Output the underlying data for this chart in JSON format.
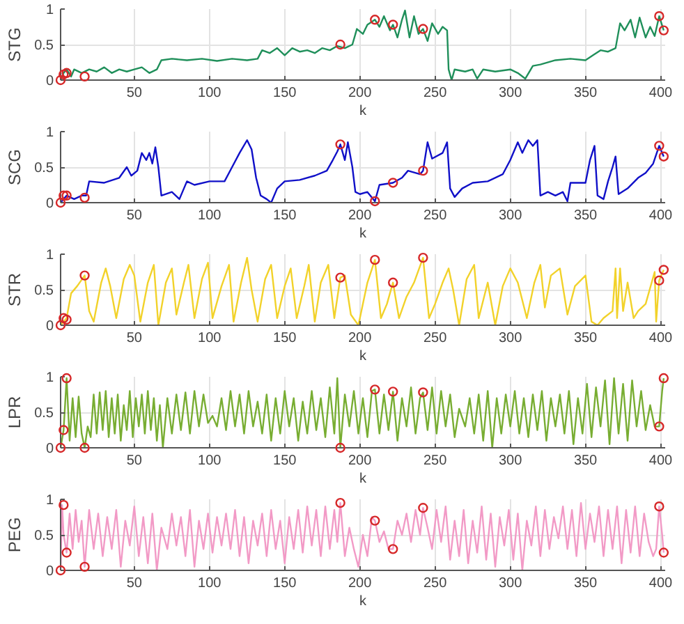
{
  "chart_data": [
    {
      "type": "line",
      "xlabel": "k",
      "ylabel": "STG",
      "xlim": [
        1,
        403
      ],
      "xticks": [
        50,
        100,
        150,
        200,
        250,
        300,
        350,
        400
      ],
      "ylim": [
        0,
        1
      ],
      "yticks": [
        0,
        0.5,
        1
      ],
      "grid": true,
      "series": [
        {
          "color": "#1f8f5a",
          "x": [
            1,
            3,
            5,
            8,
            10,
            15,
            20,
            25,
            30,
            35,
            40,
            45,
            50,
            55,
            60,
            65,
            68,
            75,
            85,
            95,
            105,
            115,
            125,
            132,
            135,
            140,
            145,
            150,
            155,
            160,
            165,
            170,
            175,
            180,
            185,
            190,
            195,
            198,
            202,
            205,
            210,
            213,
            216,
            220,
            222,
            225,
            228,
            230,
            233,
            236,
            239,
            242,
            245,
            248,
            252,
            255,
            258,
            259,
            261,
            263,
            270,
            275,
            278,
            282,
            290,
            300,
            305,
            310,
            315,
            320,
            330,
            340,
            350,
            355,
            360,
            365,
            370,
            373,
            376,
            380,
            383,
            386,
            390,
            393,
            396,
            399,
            402
          ],
          "values": [
            0,
            0.1,
            0.15,
            0.05,
            0.15,
            0.1,
            0.15,
            0.12,
            0.18,
            0.1,
            0.15,
            0.12,
            0.15,
            0.18,
            0.1,
            0.15,
            0.28,
            0.3,
            0.28,
            0.3,
            0.27,
            0.3,
            0.28,
            0.3,
            0.42,
            0.38,
            0.45,
            0.35,
            0.45,
            0.4,
            0.42,
            0.38,
            0.45,
            0.42,
            0.48,
            0.45,
            0.5,
            0.72,
            0.65,
            0.78,
            0.85,
            0.75,
            0.9,
            0.7,
            0.78,
            0.6,
            0.85,
            0.98,
            0.6,
            0.9,
            0.65,
            0.72,
            0.55,
            0.8,
            0.65,
            0.75,
            0.7,
            0.15,
            0,
            0.15,
            0.12,
            0.15,
            0.02,
            0.15,
            0.12,
            0.15,
            0.1,
            0.02,
            0.2,
            0.22,
            0.28,
            0.3,
            0.28,
            0.35,
            0.42,
            0.4,
            0.45,
            0.8,
            0.7,
            0.85,
            0.6,
            0.88,
            0.6,
            0.75,
            0.62,
            0.9,
            0.7
          ]
        },
        {
          "type": "scatter",
          "marker": "circle",
          "color": "#d62728",
          "x": [
            1,
            3,
            5,
            17,
            187,
            210,
            222,
            242,
            399,
            402
          ],
          "values": [
            0,
            0.08,
            0.1,
            0.05,
            0.5,
            0.85,
            0.78,
            0.72,
            0.9,
            0.7
          ]
        }
      ]
    },
    {
      "type": "line",
      "xlabel": "k",
      "ylabel": "SCG",
      "xlim": [
        1,
        403
      ],
      "xticks": [
        50,
        100,
        150,
        200,
        250,
        300,
        350,
        400
      ],
      "ylim": [
        0,
        1
      ],
      "yticks": [
        0,
        0.5,
        1
      ],
      "grid": true,
      "series": [
        {
          "color": "#1010c8",
          "x": [
            1,
            5,
            10,
            15,
            18,
            20,
            30,
            40,
            45,
            48,
            52,
            55,
            58,
            60,
            62,
            64,
            66,
            68,
            75,
            80,
            85,
            90,
            100,
            110,
            115,
            120,
            125,
            128,
            131,
            134,
            138,
            141,
            145,
            150,
            160,
            170,
            178,
            182,
            185,
            187,
            190,
            192,
            195,
            197,
            200,
            205,
            210,
            213,
            222,
            228,
            232,
            240,
            242,
            245,
            248,
            255,
            258,
            260,
            263,
            268,
            275,
            285,
            295,
            300,
            305,
            308,
            312,
            315,
            318,
            320,
            325,
            330,
            335,
            338,
            340,
            350,
            353,
            356,
            358,
            362,
            365,
            368,
            370,
            372,
            378,
            385,
            390,
            395,
            399,
            402
          ],
          "values": [
            0,
            0.1,
            0.05,
            0.1,
            0.1,
            0.3,
            0.28,
            0.35,
            0.5,
            0.38,
            0.45,
            0.7,
            0.6,
            0.7,
            0.55,
            0.78,
            0.5,
            0.1,
            0.15,
            0.05,
            0.3,
            0.25,
            0.3,
            0.3,
            0.5,
            0.7,
            0.88,
            0.75,
            0.35,
            0.1,
            0.05,
            0,
            0.2,
            0.3,
            0.32,
            0.38,
            0.45,
            0.6,
            0.72,
            0.82,
            0.6,
            0.85,
            0.5,
            0.15,
            0.12,
            0.15,
            0.02,
            0.25,
            0.28,
            0.35,
            0.45,
            0.4,
            0.45,
            0.85,
            0.62,
            0.7,
            0.85,
            0.2,
            0.08,
            0.2,
            0.28,
            0.3,
            0.4,
            0.6,
            0.85,
            0.7,
            0.88,
            0.8,
            0.88,
            0.1,
            0.15,
            0.1,
            0.15,
            0.02,
            0.28,
            0.28,
            0.6,
            0.8,
            0.1,
            0.05,
            0.3,
            0.5,
            0.65,
            0.12,
            0.2,
            0.35,
            0.42,
            0.55,
            0.8,
            0.65
          ]
        },
        {
          "type": "scatter",
          "marker": "circle",
          "color": "#d62728",
          "x": [
            1,
            3,
            5,
            17,
            187,
            210,
            222,
            242,
            399,
            402
          ],
          "values": [
            0,
            0.1,
            0.1,
            0.07,
            0.82,
            0.02,
            0.28,
            0.45,
            0.8,
            0.65
          ]
        }
      ]
    },
    {
      "type": "line",
      "xlabel": "k",
      "ylabel": "STR",
      "xlim": [
        1,
        403
      ],
      "xticks": [
        50,
        100,
        150,
        200,
        250,
        300,
        350,
        400
      ],
      "ylim": [
        0,
        1
      ],
      "yticks": [
        0,
        0.5,
        1
      ],
      "grid": true,
      "series": [
        {
          "color": "#f2d22a",
          "x": [
            1,
            5,
            8,
            12,
            17,
            20,
            23,
            28,
            31,
            34,
            38,
            43,
            47,
            50,
            54,
            59,
            63,
            66,
            71,
            75,
            78,
            83,
            86,
            90,
            95,
            99,
            102,
            108,
            113,
            116,
            121,
            125,
            128,
            132,
            137,
            141,
            145,
            150,
            154,
            158,
            163,
            166,
            170,
            174,
            179,
            183,
            187,
            190,
            194,
            199,
            205,
            210,
            214,
            218,
            222,
            226,
            231,
            236,
            242,
            246,
            250,
            255,
            259,
            262,
            266,
            271,
            276,
            279,
            285,
            290,
            295,
            300,
            305,
            311,
            316,
            320,
            323,
            327,
            333,
            338,
            343,
            350,
            354,
            358,
            362,
            368,
            370,
            371,
            373,
            375,
            378,
            382,
            385,
            390,
            396,
            397,
            399,
            402
          ],
          "values": [
            0,
            0.1,
            0.45,
            0.55,
            0.7,
            0.2,
            0.05,
            0.6,
            0.8,
            0.55,
            0.1,
            0.65,
            0.85,
            0.7,
            0.05,
            0.6,
            0.85,
            0,
            0.6,
            0.8,
            0.15,
            0.6,
            0.85,
            0.1,
            0.65,
            0.88,
            0.1,
            0.55,
            0.85,
            0.05,
            0.6,
            0.95,
            0.5,
            0.05,
            0.65,
            0.85,
            0.1,
            0.55,
            0.8,
            0.1,
            0.55,
            0.85,
            0.05,
            0.6,
            0.85,
            0.1,
            0.67,
            0.7,
            0.15,
            0,
            0.6,
            0.92,
            0.1,
            0.3,
            0.6,
            0.1,
            0.4,
            0.6,
            0.95,
            0.1,
            0.3,
            0.6,
            0.8,
            0.5,
            0,
            0.65,
            0.85,
            0.1,
            0.6,
            0,
            0.55,
            0.8,
            0.6,
            0.1,
            0.6,
            0.85,
            0.25,
            0.7,
            0.8,
            0.15,
            0.55,
            0.7,
            0.05,
            0,
            0.1,
            0.2,
            0.8,
            0.1,
            0.8,
            0.2,
            0.6,
            0.1,
            0.2,
            0.3,
            0.75,
            0.05,
            0.63,
            0.78
          ]
        },
        {
          "type": "scatter",
          "marker": "circle",
          "color": "#d62728",
          "x": [
            1,
            3,
            5,
            17,
            187,
            210,
            222,
            242,
            399,
            402
          ],
          "values": [
            0,
            0.1,
            0.08,
            0.7,
            0.67,
            0.92,
            0.6,
            0.95,
            0.63,
            0.78
          ]
        }
      ]
    },
    {
      "type": "line",
      "xlabel": "k",
      "ylabel": "LPR",
      "xlim": [
        1,
        403
      ],
      "xticks": [
        50,
        100,
        150,
        200,
        250,
        300,
        350,
        400
      ],
      "ylim": [
        0,
        1
      ],
      "yticks": [
        0,
        0.5,
        1
      ],
      "grid": true,
      "series": [
        {
          "color": "#78ad32",
          "x": [
            1,
            3,
            5,
            7,
            9,
            11,
            13,
            15,
            17,
            19,
            21,
            23,
            25,
            27,
            29,
            31,
            33,
            35,
            37,
            39,
            41,
            43,
            45,
            47,
            49,
            51,
            53,
            55,
            57,
            59,
            61,
            63,
            65,
            67,
            69,
            72,
            75,
            78,
            81,
            84,
            87,
            90,
            93,
            96,
            99,
            102,
            105,
            108,
            111,
            114,
            117,
            120,
            123,
            126,
            129,
            132,
            135,
            138,
            141,
            144,
            147,
            150,
            153,
            156,
            159,
            162,
            165,
            168,
            171,
            174,
            177,
            180,
            183,
            185,
            187,
            190,
            193,
            196,
            199,
            202,
            205,
            208,
            210,
            213,
            216,
            219,
            222,
            225,
            228,
            231,
            234,
            237,
            240,
            242,
            245,
            248,
            251,
            254,
            257,
            260,
            263,
            266,
            270,
            273,
            276,
            279,
            282,
            285,
            288,
            291,
            294,
            297,
            300,
            303,
            306,
            309,
            312,
            315,
            318,
            321,
            324,
            327,
            330,
            333,
            336,
            339,
            342,
            345,
            348,
            351,
            354,
            357,
            360,
            363,
            366,
            369,
            372,
            375,
            378,
            381,
            384,
            387,
            390,
            393,
            396,
            399,
            401,
            402
          ],
          "values": [
            0,
            0.25,
            0.98,
            0.1,
            0.7,
            0.15,
            0.72,
            0.2,
            0,
            0.3,
            0.15,
            0.75,
            0.2,
            0.78,
            0.25,
            0.8,
            0.15,
            0.7,
            0.2,
            0.75,
            0.1,
            0.6,
            0.25,
            0.8,
            0.15,
            0.7,
            0.3,
            0.75,
            0.2,
            0.8,
            0.25,
            0.7,
            0.1,
            0.6,
            0,
            0.7,
            0.2,
            0.75,
            0.25,
            0.78,
            0.2,
            0.8,
            0.3,
            0.75,
            0.35,
            0.45,
            0.3,
            0.7,
            0.25,
            0.8,
            0.3,
            0.75,
            0.2,
            0.8,
            0.3,
            0.65,
            0.2,
            0.75,
            0.1,
            0.7,
            0.2,
            0.8,
            0.3,
            0.7,
            0.1,
            0.65,
            0.2,
            0.8,
            0.25,
            0.7,
            0.15,
            0.85,
            0.2,
            0.98,
            0,
            0.75,
            0.3,
            0.8,
            0.2,
            0.7,
            0.15,
            0.8,
            0.82,
            0.2,
            0.75,
            0.25,
            0.79,
            0.1,
            0.7,
            0.3,
            0.85,
            0.2,
            0.7,
            0.78,
            0.25,
            0.85,
            0.2,
            0.8,
            0.3,
            0.75,
            0.15,
            0.55,
            0.3,
            0.7,
            0.2,
            0.75,
            0.1,
            0.8,
            0,
            0.7,
            0.2,
            0.75,
            0.3,
            0.8,
            0.2,
            0.7,
            0.15,
            0.75,
            0.25,
            0.8,
            0.1,
            0.7,
            0.3,
            0.75,
            0.2,
            0.8,
            0.05,
            0.7,
            0.2,
            0.9,
            0.15,
            0.85,
            0.3,
            0.95,
            0.05,
            0.98,
            0.2,
            0.9,
            0.1,
            0.95,
            0.3,
            0.8,
            0.25,
            0.6,
            0.3,
            0.3,
            0.8,
            0.98
          ]
        },
        {
          "type": "scatter",
          "marker": "circle",
          "color": "#d62728",
          "x": [
            1,
            3,
            5,
            17,
            187,
            210,
            222,
            242,
            399,
            402
          ],
          "values": [
            0,
            0.25,
            0.98,
            0,
            0,
            0.82,
            0.79,
            0.78,
            0.3,
            0.98
          ]
        }
      ]
    },
    {
      "type": "line",
      "xlabel": "k",
      "ylabel": "PEG",
      "xlim": [
        1,
        403
      ],
      "xticks": [
        50,
        100,
        150,
        200,
        250,
        300,
        350,
        400
      ],
      "ylim": [
        0,
        1
      ],
      "yticks": [
        0,
        0.5,
        1
      ],
      "grid": true,
      "series": [
        {
          "color": "#f29ac6",
          "x": [
            1,
            2,
            3,
            5,
            7,
            9,
            11,
            13,
            15,
            17,
            20,
            23,
            26,
            29,
            32,
            35,
            38,
            41,
            44,
            47,
            50,
            53,
            56,
            59,
            62,
            65,
            68,
            72,
            75,
            78,
            81,
            84,
            87,
            90,
            93,
            96,
            99,
            102,
            105,
            108,
            111,
            114,
            117,
            120,
            123,
            126,
            129,
            132,
            135,
            138,
            141,
            144,
            147,
            150,
            153,
            156,
            159,
            162,
            165,
            168,
            171,
            174,
            177,
            180,
            183,
            185,
            187,
            190,
            193,
            196,
            199,
            202,
            205,
            208,
            210,
            213,
            216,
            219,
            222,
            225,
            228,
            231,
            234,
            237,
            240,
            242,
            245,
            248,
            251,
            254,
            257,
            260,
            263,
            266,
            269,
            272,
            275,
            278,
            281,
            284,
            287,
            290,
            293,
            296,
            299,
            302,
            305,
            308,
            311,
            314,
            317,
            320,
            323,
            326,
            329,
            332,
            335,
            338,
            341,
            344,
            347,
            350,
            353,
            356,
            359,
            362,
            365,
            368,
            371,
            374,
            377,
            380,
            383,
            386,
            389,
            392,
            395,
            397,
            399,
            401,
            402
          ],
          "values": [
            0,
            0.92,
            0.5,
            0.25,
            0.8,
            0.3,
            0.85,
            0.4,
            0.7,
            0.05,
            0.85,
            0.3,
            0.8,
            0.2,
            0.75,
            0.3,
            0.85,
            0.05,
            0.7,
            0.35,
            0.9,
            0.2,
            0.75,
            0.1,
            0.8,
            0,
            0.6,
            0.3,
            0.8,
            0.35,
            0.75,
            0.2,
            0.85,
            0.05,
            0.7,
            0.3,
            0.8,
            0.25,
            0.75,
            0.35,
            0.8,
            0.3,
            0.85,
            0.2,
            0.75,
            0.1,
            0.7,
            0.35,
            0.8,
            0.2,
            0.85,
            0.3,
            0.7,
            0.1,
            0.75,
            0.3,
            0.85,
            0.25,
            0.9,
            0.35,
            0.85,
            0.2,
            0.9,
            0.3,
            0.85,
            0.4,
            0.95,
            0.2,
            0.6,
            0.3,
            0.05,
            0.5,
            0.2,
            0.75,
            0.7,
            0.4,
            0.55,
            0.3,
            0.3,
            0.7,
            0.5,
            0.8,
            0.4,
            0.85,
            0.5,
            0.88,
            0.6,
            0.3,
            0.85,
            0.4,
            0.9,
            0.15,
            0.7,
            0.2,
            0.85,
            0.1,
            0.7,
            0.25,
            0.9,
            0.15,
            0.8,
            0.05,
            0.75,
            0.35,
            0.85,
            0.15,
            0.8,
            0,
            0.7,
            0.35,
            0.9,
            0.2,
            0.85,
            0.3,
            0.75,
            0.45,
            0.9,
            0.3,
            0.85,
            0.2,
            0.95,
            0.3,
            0.8,
            0.4,
            0.9,
            0.2,
            0.85,
            0.3,
            0.9,
            0.1,
            0.85,
            0.25,
            0.9,
            0.2,
            0.8,
            0.4,
            0.2,
            0.3,
            0.9,
            0.5,
            0.25
          ]
        },
        {
          "type": "scatter",
          "marker": "circle",
          "color": "#d62728",
          "x": [
            1,
            3,
            5,
            17,
            187,
            210,
            222,
            242,
            399,
            402
          ],
          "values": [
            0,
            0.92,
            0.25,
            0.05,
            0.95,
            0.7,
            0.3,
            0.88,
            0.9,
            0.25
          ]
        }
      ]
    }
  ]
}
